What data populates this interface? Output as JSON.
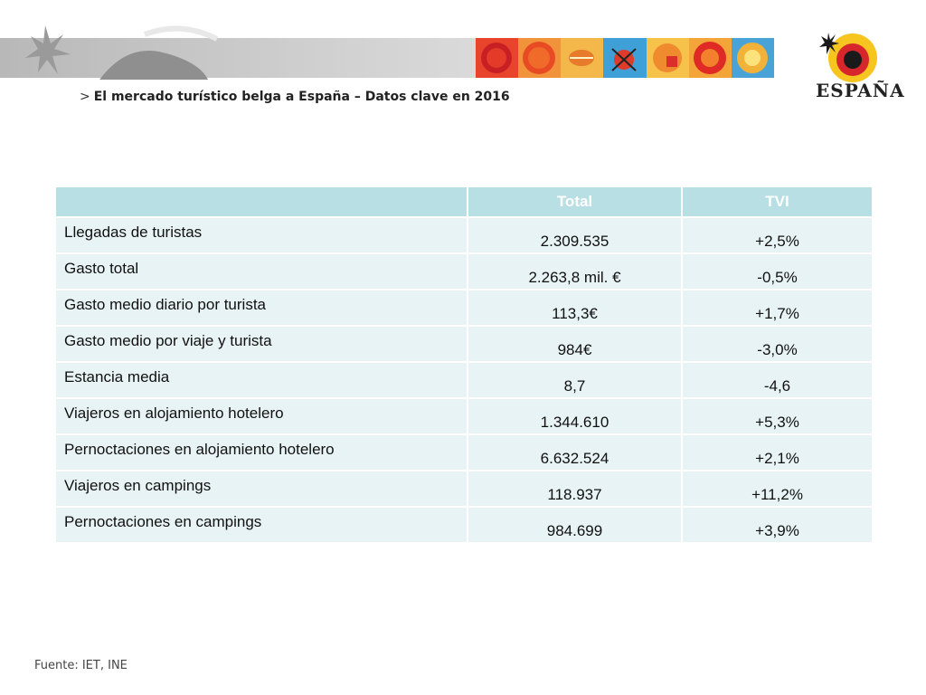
{
  "header": {
    "subtitle_arrow": ">",
    "subtitle": "El mercado turístico belga a España – Datos clave en 2016",
    "logo_text": "ESPAÑA"
  },
  "table": {
    "columns": [
      "",
      "Total",
      "TVI"
    ],
    "rows": [
      {
        "label": "Llegadas de turistas",
        "total": "2.309.535",
        "tvi": "+2,5%"
      },
      {
        "label": "Gasto total",
        "total": "2.263,8 mil. €",
        "tvi": "-0,5%"
      },
      {
        "label": "Gasto medio diario por turista",
        "total": "113,3€",
        "tvi": "+1,7%"
      },
      {
        "label": "Gasto medio por viaje y turista",
        "total": "984€",
        "tvi": "-3,0%"
      },
      {
        "label": "Estancia media",
        "total": "8,7",
        "tvi": "-4,6"
      },
      {
        "label": "Viajeros en alojamiento hotelero",
        "total": "1.344.610",
        "tvi": "+5,3%"
      },
      {
        "label": "Pernoctaciones en alojamiento hotelero",
        "total": "6.632.524",
        "tvi": "+2,1%"
      },
      {
        "label": "Viajeros en campings",
        "total": "118.937",
        "tvi": "+11,2%"
      },
      {
        "label": "Pernoctaciones en campings",
        "total": "984.699",
        "tvi": "+3,9%"
      }
    ]
  },
  "footer": {
    "source": "Fuente: IET, INE"
  },
  "colors": {
    "header_cell": "#b8dfe4",
    "body_cell": "#e8f3f5",
    "logo_red": "#d7262c",
    "logo_yellow": "#f7c520"
  }
}
